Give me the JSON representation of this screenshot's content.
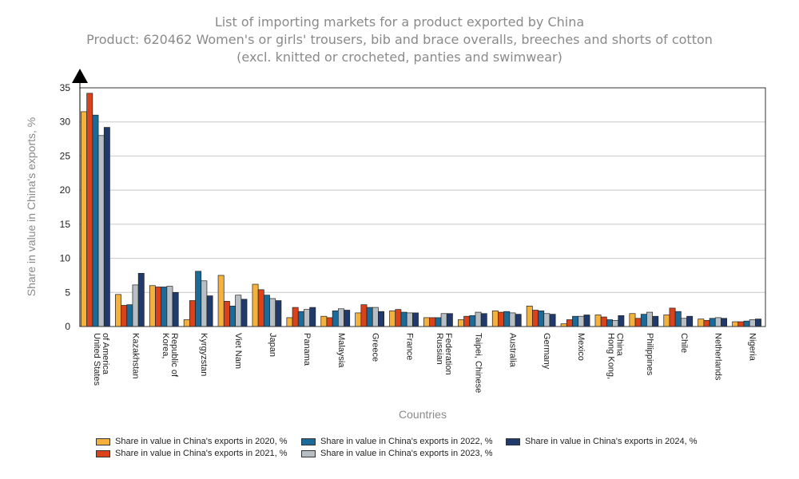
{
  "chart_data": {
    "type": "bar",
    "title_lines": [
      "List of importing markets for a product exported by China",
      "Product: 620462 Women's or girls' trousers, bib and brace overalls, breeches and shorts of cotton",
      "(excl. knitted or crocheted, panties and swimwear)"
    ],
    "xlabel": "Countries",
    "ylabel": "Share in value in China's exports, %",
    "ylim": [
      0,
      35
    ],
    "yticks": [
      0,
      5,
      10,
      15,
      20,
      25,
      30,
      35
    ],
    "grid": true,
    "legend_position": "bottom",
    "categories": [
      [
        "United States",
        "of America"
      ],
      [
        "Kazakhstan"
      ],
      [
        "Korea,",
        "Republic of"
      ],
      [
        "Kyrgyzstan"
      ],
      [
        "Viet Nam"
      ],
      [
        "Japan"
      ],
      [
        "Panama"
      ],
      [
        "Malaysia"
      ],
      [
        "Greece"
      ],
      [
        "France"
      ],
      [
        "Russian",
        "Federation"
      ],
      [
        "Taipei, Chinese"
      ],
      [
        "Australia"
      ],
      [
        "Germany"
      ],
      [
        "Mexico"
      ],
      [
        "Hong Kong,",
        "China"
      ],
      [
        "Philippines"
      ],
      [
        "Chile"
      ],
      [
        "Netherlands"
      ],
      [
        "Nigeria"
      ]
    ],
    "series": [
      {
        "name": "Share in value in China's exports in 2020, %",
        "color": "#f4b13c",
        "values": [
          31.5,
          4.7,
          6.0,
          1.0,
          7.5,
          6.2,
          1.3,
          1.5,
          2.0,
          2.3,
          1.3,
          1.0,
          2.3,
          3.0,
          0.4,
          1.7,
          1.9,
          1.7,
          1.1,
          0.7
        ]
      },
      {
        "name": "Share in value in China's exports in 2021, %",
        "color": "#d9421a",
        "values": [
          34.2,
          3.1,
          5.8,
          3.8,
          3.7,
          5.4,
          2.8,
          1.3,
          3.2,
          2.5,
          1.3,
          1.5,
          2.1,
          2.4,
          1.0,
          1.4,
          1.2,
          2.7,
          0.9,
          0.7
        ]
      },
      {
        "name": "Share in value in China's exports in 2022, %",
        "color": "#1a6a9a",
        "values": [
          31.0,
          3.2,
          5.8,
          8.1,
          3.0,
          4.6,
          2.2,
          2.3,
          2.8,
          2.1,
          1.3,
          1.6,
          2.2,
          2.3,
          1.5,
          1.0,
          1.8,
          2.2,
          1.2,
          0.8
        ]
      },
      {
        "name": "Share in value in China's exports in 2023, %",
        "color": "#b8bfc4",
        "values": [
          28.0,
          6.1,
          5.9,
          6.7,
          4.6,
          4.1,
          2.5,
          2.6,
          2.8,
          2.0,
          1.9,
          2.1,
          2.0,
          1.9,
          1.5,
          0.9,
          2.1,
          1.2,
          1.3,
          1.0
        ]
      },
      {
        "name": "Share in value in China's exports in 2024, %",
        "color": "#1f3a6b",
        "values": [
          29.2,
          7.8,
          5.0,
          4.5,
          4.0,
          3.8,
          2.8,
          2.4,
          2.2,
          2.0,
          1.9,
          1.9,
          1.8,
          1.8,
          1.7,
          1.6,
          1.5,
          1.5,
          1.2,
          1.1
        ]
      }
    ]
  }
}
